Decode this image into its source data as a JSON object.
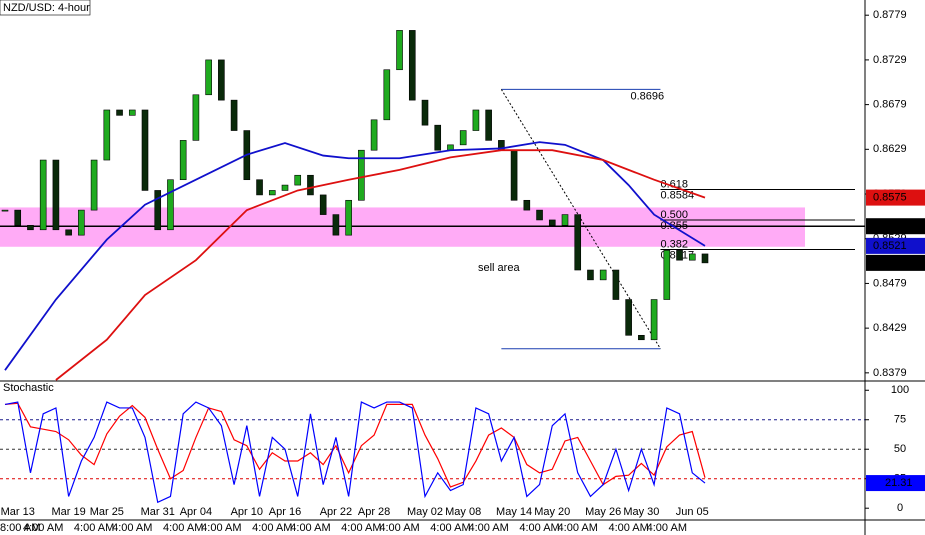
{
  "chart_data": [
    {
      "type": "candlestick",
      "title": "NZD/USD: 4-hour",
      "categories": [
        null,
        "Mar 13",
        null,
        null,
        null,
        "Mar 19",
        null,
        null,
        "Mar 25",
        null,
        null,
        null,
        "Mar 31",
        null,
        null,
        "Apr 04",
        null,
        null,
        null,
        "Apr 10",
        null,
        null,
        "Apr 16",
        null,
        null,
        null,
        "Apr 22",
        null,
        null,
        "Apr 28",
        null,
        null,
        null,
        "May 02",
        null,
        null,
        "May 08",
        null,
        null,
        null,
        "May 14",
        null,
        null,
        "May 20",
        null,
        null,
        null,
        "May 26",
        null,
        null,
        "May 30",
        null,
        null,
        null,
        "Jun 05",
        null
      ],
      "time_labels": [
        "8:00 AM",
        null,
        null,
        "4:00 AM",
        null,
        null,
        null,
        "4:00 AM",
        null,
        null,
        "4:00 AM",
        null,
        null,
        null,
        "4:00 AM",
        null,
        null,
        "4:00 AM",
        null,
        null,
        null,
        "4:00 AM",
        null,
        null,
        "4:00 AM",
        null,
        null,
        null,
        "4:00 AM",
        null,
        null,
        "4:00 AM",
        null,
        null,
        null,
        "4:00 AM",
        null,
        null,
        "4:00 AM",
        null,
        null,
        null,
        "4:00 AM",
        null,
        null,
        "4:00 AM",
        null,
        null,
        null,
        "4:00 AM",
        null,
        null,
        "4:00 AM",
        null,
        null,
        null
      ],
      "close": [
        0.8561,
        0.8544,
        0.8539,
        0.8617,
        0.8539,
        0.8533,
        0.8561,
        0.8617,
        0.8673,
        0.8667,
        0.8673,
        0.8583,
        0.8539,
        0.8595,
        0.8639,
        0.869,
        0.8729,
        0.8684,
        0.865,
        0.8595,
        0.8578,
        0.8583,
        0.8589,
        0.86,
        0.8578,
        0.8556,
        0.8533,
        0.8572,
        0.8628,
        0.8662,
        0.8718,
        0.8762,
        0.8684,
        0.8656,
        0.8628,
        0.8634,
        0.865,
        0.8673,
        0.8639,
        0.8628,
        0.8572,
        0.8561,
        0.855,
        0.8544,
        0.8556,
        0.8494,
        0.8483,
        0.8494,
        0.8461,
        0.8421,
        0.8416,
        0.8461,
        0.8516,
        0.8505,
        0.8512,
        0.8502
      ],
      "up_color": "#1faa1f",
      "down_color": "#0a2a0a",
      "ylim": [
        0.8371,
        0.8796
      ],
      "yticks": [
        0.8779,
        0.8729,
        0.8679,
        0.8629,
        0.8579,
        0.8529,
        0.8479,
        0.8429,
        0.8379
      ],
      "moving_averages": [
        {
          "color": "#1010cc",
          "x": [
            0,
            4,
            8,
            11,
            15,
            19,
            22,
            25,
            27,
            31,
            35,
            39,
            42,
            44,
            47,
            49,
            51,
            55
          ],
          "values": [
            0.8382,
            0.8461,
            0.8528,
            0.8567,
            0.8595,
            0.8623,
            0.8636,
            0.8622,
            0.8619,
            0.8619,
            0.8628,
            0.863,
            0.8637,
            0.8634,
            0.8617,
            0.8589,
            0.8556,
            0.8521
          ]
        },
        {
          "color": "#dd1010",
          "x": [
            4,
            8,
            11,
            15,
            19,
            23,
            27,
            31,
            35,
            39,
            43,
            47,
            51,
            55
          ],
          "values": [
            0.8371,
            0.8416,
            0.8466,
            0.8505,
            0.8561,
            0.8583,
            0.8595,
            0.8606,
            0.862,
            0.8628,
            0.8628,
            0.8617,
            0.8595,
            0.8575
          ]
        }
      ],
      "zone": {
        "range": [
          0.852,
          0.8564
        ],
        "label": "sell area",
        "color": "#ff9cf5"
      },
      "level": {
        "value": 0.8543,
        "color": "#000000"
      },
      "fib": {
        "high": 0.8696,
        "low": 0.8406,
        "x": [
          39,
          51.5
        ],
        "color": "#1a3fb0",
        "levels": [
          {
            "ratio": 0.618,
            "price": 0.8584
          },
          {
            "ratio": {
              "value": 0.5,
              "label": "0.500"
            },
            "price": 0.855
          },
          {
            "ratio": 0.382,
            "price": 0.8517
          }
        ]
      }
    },
    {
      "type": "line",
      "title": "Stochastic",
      "series": [
        {
          "color": "#0000ff",
          "values": [
            88,
            90,
            30,
            80,
            85,
            10,
            40,
            60,
            90,
            85,
            85,
            60,
            5,
            10,
            80,
            90,
            85,
            70,
            20,
            70,
            10,
            60,
            50,
            10,
            80,
            20,
            60,
            10,
            90,
            85,
            90,
            90,
            85,
            10,
            30,
            15,
            20,
            85,
            80,
            40,
            60,
            10,
            20,
            70,
            80,
            30,
            10,
            20,
            50,
            15,
            50,
            20,
            85,
            80,
            30,
            21.31
          ]
        },
        {
          "color": "#ff0000",
          "values": [
            88,
            89,
            69,
            67,
            65,
            58,
            45,
            37,
            63,
            78,
            87,
            77,
            50,
            25,
            32,
            60,
            85,
            82,
            58,
            53,
            33,
            47,
            40,
            40,
            47,
            37,
            53,
            30,
            53,
            62,
            88,
            88,
            88,
            62,
            42,
            18,
            22,
            40,
            62,
            68,
            60,
            37,
            30,
            33,
            57,
            60,
            40,
            20,
            27,
            28,
            38,
            28,
            52,
            62,
            65,
            25.9
          ]
        }
      ],
      "ylim": [
        -10,
        107
      ],
      "yticks": [
        100,
        75,
        50,
        25,
        0
      ],
      "levels": [
        {
          "value": 75,
          "color": "#1a1a8a"
        },
        {
          "value": 50,
          "color": "#333333"
        },
        {
          "value": 25,
          "color": "#dd0000"
        }
      ]
    }
  ]
}
